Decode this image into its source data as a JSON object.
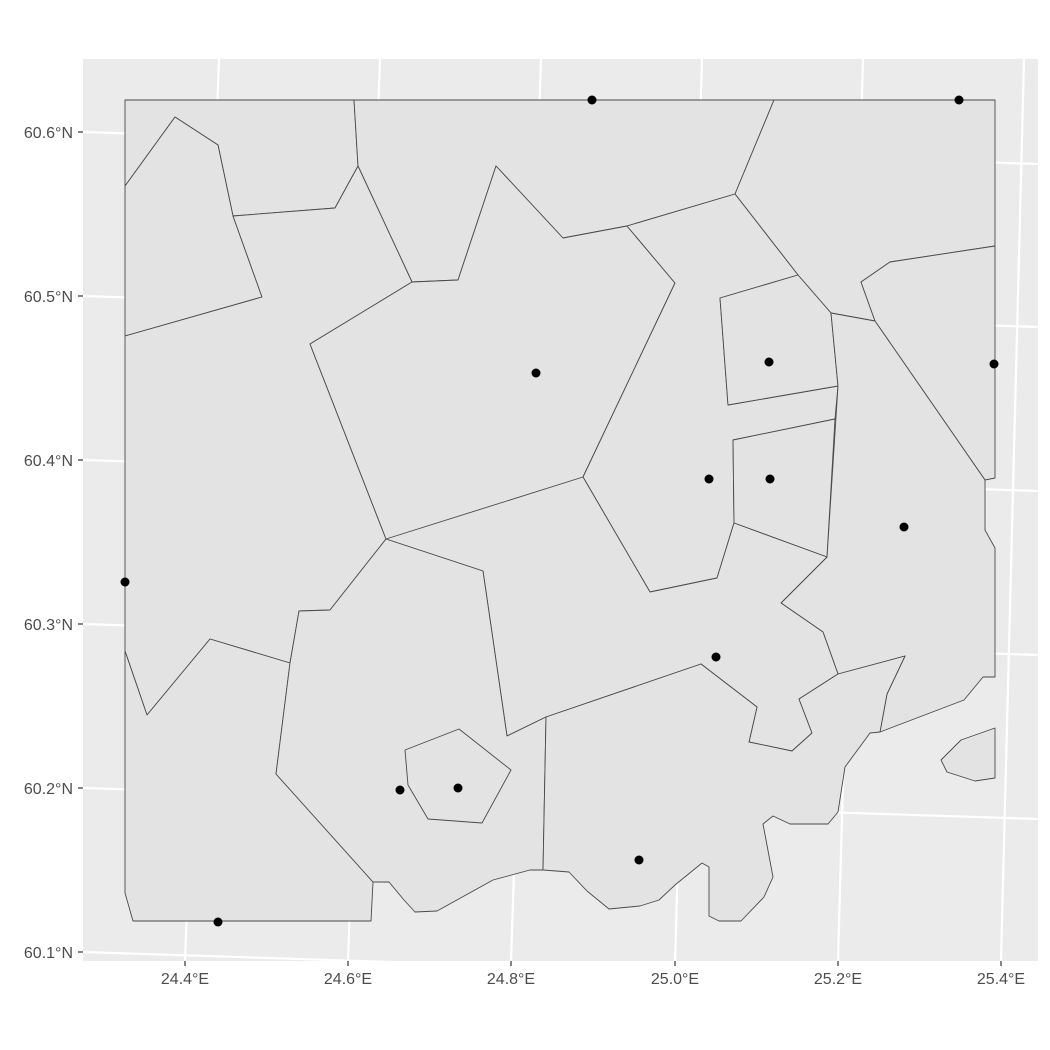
{
  "axes": {
    "x_ticks": [
      {
        "label": "24.4°E"
      },
      {
        "label": "24.6°E"
      },
      {
        "label": "24.8°E"
      },
      {
        "label": "25.0°E"
      },
      {
        "label": "25.2°E"
      },
      {
        "label": "25.4°E"
      }
    ],
    "y_ticks": [
      {
        "label": "60.6°N"
      },
      {
        "label": "60.5°N"
      },
      {
        "label": "60.4°N"
      },
      {
        "label": "60.3°N"
      },
      {
        "label": "60.2°N"
      },
      {
        "label": "60.1°N"
      }
    ]
  },
  "colors": {
    "panel_background": "#ebebeb",
    "gridline": "#ffffff",
    "region_fill": "#e3e3e3",
    "region_border": "#4a4a4a",
    "point": "#000000"
  },
  "map": {
    "bounding_square": {
      "lon_min": 24.33,
      "lon_max": 25.39,
      "lat_min": 60.12,
      "lat_max": 60.62
    },
    "points": [
      {
        "lon": 24.9,
        "lat": 60.62
      },
      {
        "lon": 25.35,
        "lat": 60.62
      },
      {
        "lon": 24.83,
        "lat": 60.455
      },
      {
        "lon": 25.12,
        "lat": 60.46
      },
      {
        "lon": 25.39,
        "lat": 60.46
      },
      {
        "lon": 25.04,
        "lat": 60.39
      },
      {
        "lon": 25.12,
        "lat": 60.39
      },
      {
        "lon": 25.28,
        "lat": 60.36
      },
      {
        "lon": 24.33,
        "lat": 60.325
      },
      {
        "lon": 25.05,
        "lat": 60.28
      },
      {
        "lon": 24.66,
        "lat": 60.2
      },
      {
        "lon": 24.73,
        "lat": 60.2
      },
      {
        "lon": 24.96,
        "lat": 60.157
      },
      {
        "lon": 24.44,
        "lat": 60.12
      }
    ]
  }
}
